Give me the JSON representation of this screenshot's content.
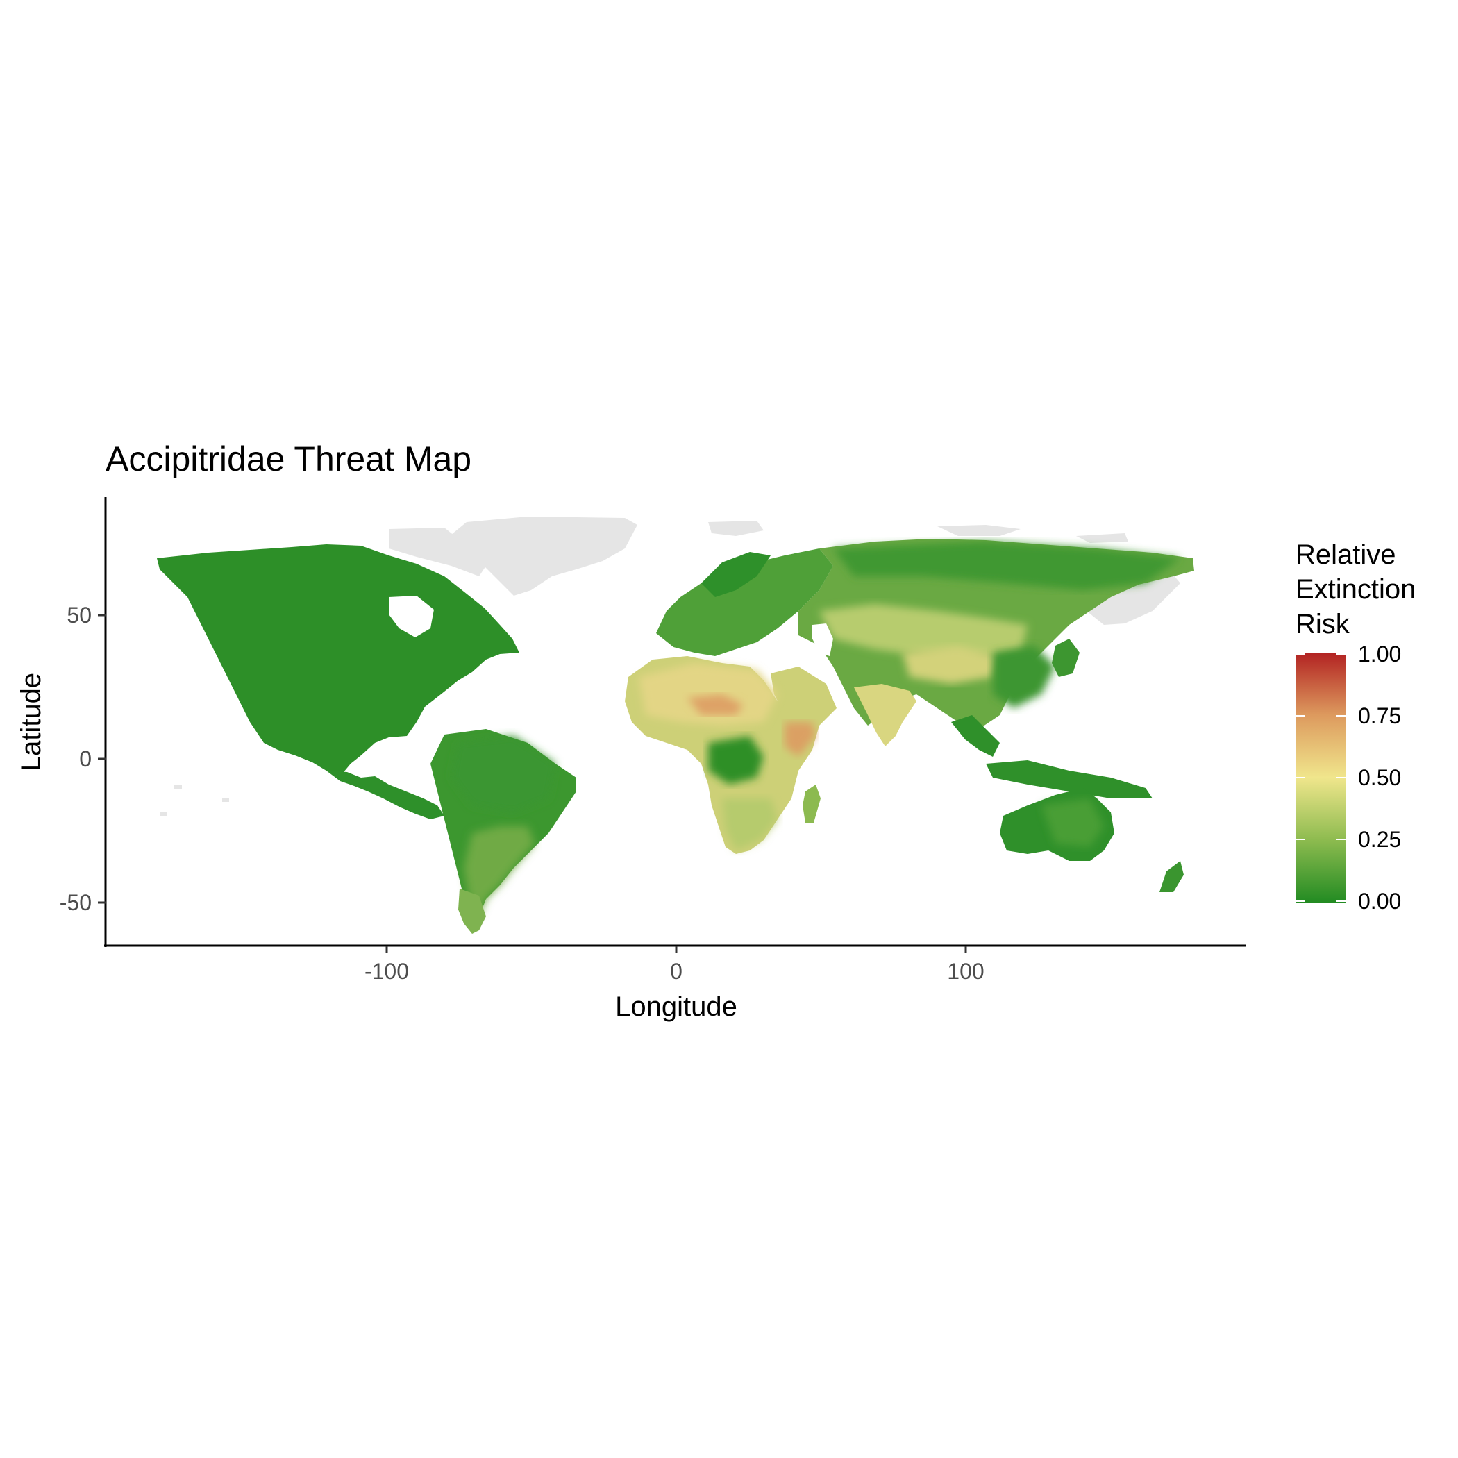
{
  "title": "Accipitridae Threat Map",
  "x_axis": {
    "label": "Longitude",
    "ticks": [
      "-100",
      "0",
      "100"
    ],
    "tick_values": [
      -100,
      0,
      100
    ],
    "range": [
      -190,
      200
    ]
  },
  "y_axis": {
    "label": "Latitude",
    "ticks": [
      "50",
      "0",
      "-50"
    ],
    "tick_values": [
      50,
      0,
      -50
    ],
    "range": [
      -66,
      92
    ]
  },
  "legend": {
    "title_lines": [
      "Relative",
      "Extinction",
      "Risk"
    ],
    "labels": [
      "1.00",
      "0.75",
      "0.50",
      "0.25",
      "0.00"
    ],
    "values": [
      1.0,
      0.75,
      0.5,
      0.25,
      0.0
    ],
    "colors": {
      "low": "#228b22",
      "mid": "#f0e68c",
      "high": "#b22222",
      "no_data": "#e5e5e5"
    }
  },
  "chart_data": {
    "type": "heatmap",
    "title": "Accipitridae Threat Map",
    "xlabel": "Longitude",
    "ylabel": "Latitude",
    "xlim": [
      -190,
      200
    ],
    "ylim": [
      -66,
      92
    ],
    "color_scale": {
      "name": "Relative Extinction Risk",
      "min": 0.0,
      "max": 1.0,
      "colors": [
        "#228b22",
        "#f0e68c",
        "#b22222"
      ]
    },
    "regions": [
      {
        "name": "North America",
        "risk": 0.02
      },
      {
        "name": "Central America",
        "risk": 0.05
      },
      {
        "name": "Amazon basin",
        "risk": 0.1
      },
      {
        "name": "Southern South America",
        "risk": 0.18
      },
      {
        "name": "Patagonia",
        "risk": 0.25
      },
      {
        "name": "Europe",
        "risk": 0.12
      },
      {
        "name": "Central Asia",
        "risk": 0.35
      },
      {
        "name": "Siberia",
        "risk": 0.15
      },
      {
        "name": "Sahara",
        "risk": 0.6
      },
      {
        "name": "Central Sahara",
        "risk": 0.7
      },
      {
        "name": "Horn of Africa",
        "risk": 0.72
      },
      {
        "name": "Congo basin",
        "risk": 0.05
      },
      {
        "name": "Southern Africa",
        "risk": 0.35
      },
      {
        "name": "Arabian Peninsula",
        "risk": 0.4
      },
      {
        "name": "India",
        "risk": 0.5
      },
      {
        "name": "Tibetan Plateau",
        "risk": 0.55
      },
      {
        "name": "East Asia",
        "risk": 0.2
      },
      {
        "name": "Southeast Asia",
        "risk": 0.08
      },
      {
        "name": "Australia",
        "risk": 0.05
      },
      {
        "name": "Greenland",
        "no_data": true
      }
    ]
  }
}
